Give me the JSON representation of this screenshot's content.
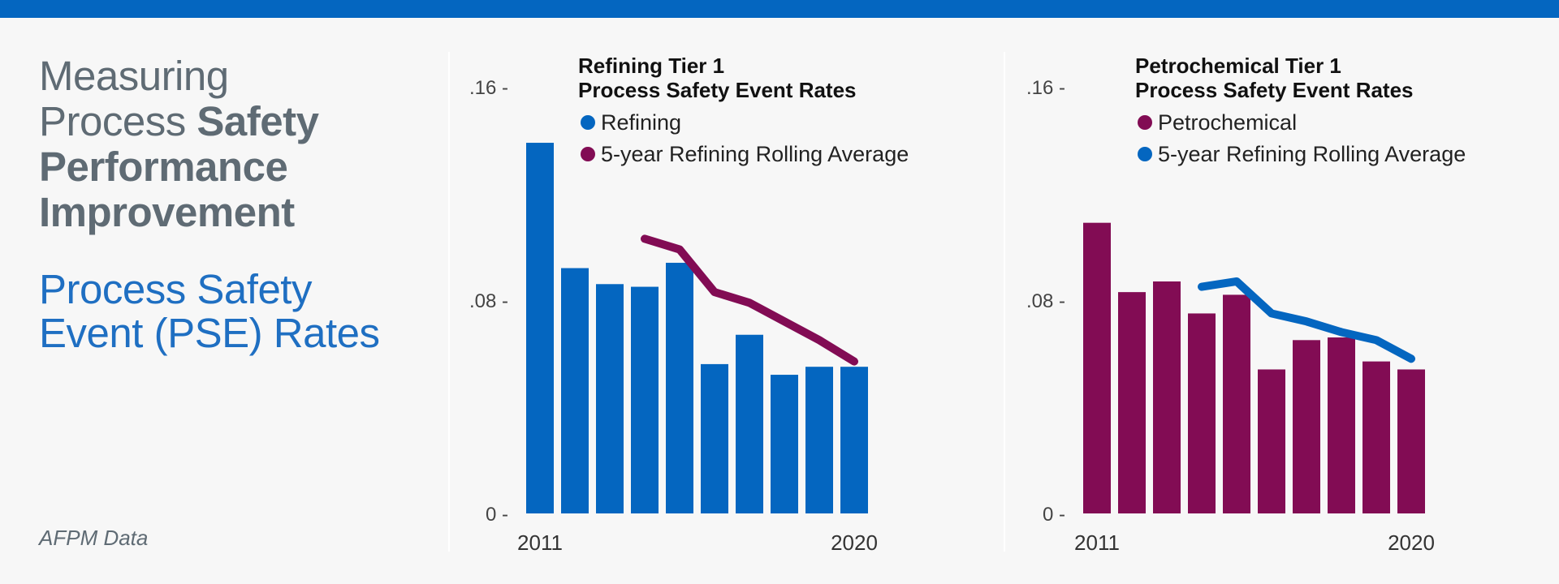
{
  "header": {
    "title_part1": "Measuring",
    "title_part2": "Process",
    "title_part3": "Safety",
    "title_part4": "Performance",
    "title_part5": "Improvement",
    "subtitle": "Process Safety Event (PSE) Rates"
  },
  "source": "AFPM Data",
  "colors": {
    "refining": "#0466c0",
    "petrochemical": "#820c54",
    "bar_blue": "#0466c0",
    "top_bar": "#0466c0"
  },
  "chart_data": [
    {
      "type": "bar",
      "title_line1": "Refining Tier 1",
      "title_line2": "Process Safety Event Rates",
      "x": [
        "2011",
        "2012",
        "2013",
        "2014",
        "2015",
        "2016",
        "2017",
        "2018",
        "2019",
        "2020"
      ],
      "x_tick_labels": [
        "2011",
        "2020"
      ],
      "y_tick_labels": [
        ".16 -",
        ".08 -",
        "0 -"
      ],
      "y_ticks": [
        0.16,
        0.08,
        0
      ],
      "ylim": [
        0,
        0.16
      ],
      "series": [
        {
          "name": "Refining",
          "kind": "bar",
          "color": "#0466c0",
          "values": [
            0.139,
            0.092,
            0.086,
            0.085,
            0.094,
            0.056,
            0.067,
            0.052,
            0.055,
            0.055
          ]
        },
        {
          "name": "5-year Refining Rolling Average",
          "kind": "line",
          "color": "#820c54",
          "values": [
            null,
            null,
            null,
            0.103,
            0.099,
            0.083,
            0.079,
            0.072,
            0.065,
            0.057
          ]
        }
      ]
    },
    {
      "type": "bar",
      "title_line1": "Petrochemical Tier 1",
      "title_line2": "Process Safety Event Rates",
      "x": [
        "2011",
        "2012",
        "2013",
        "2014",
        "2015",
        "2016",
        "2017",
        "2018",
        "2019",
        "2020"
      ],
      "x_tick_labels": [
        "2011",
        "2020"
      ],
      "y_tick_labels": [
        ".16 -",
        ".08 -",
        "0 -"
      ],
      "y_ticks": [
        0.16,
        0.08,
        0
      ],
      "ylim": [
        0,
        0.16
      ],
      "series": [
        {
          "name": "Petrochemical",
          "kind": "bar",
          "color": "#820c54",
          "values": [
            0.109,
            0.083,
            0.087,
            0.075,
            0.082,
            0.054,
            0.065,
            0.066,
            0.057,
            0.054
          ]
        },
        {
          "name": "5-year Refining Rolling Average",
          "kind": "line",
          "color": "#0466c0",
          "values": [
            null,
            null,
            null,
            0.085,
            0.087,
            0.075,
            0.072,
            0.068,
            0.065,
            0.058
          ]
        }
      ]
    }
  ]
}
